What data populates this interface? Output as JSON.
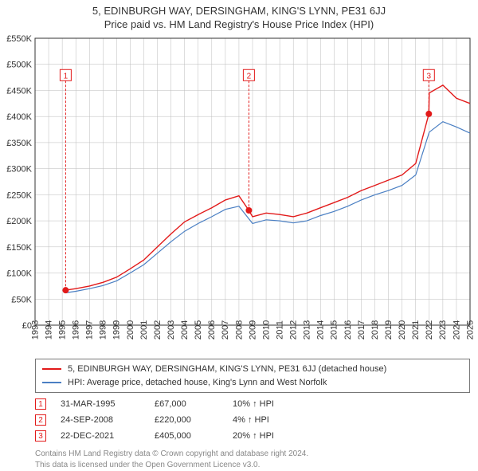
{
  "title_line1": "5, EDINBURGH WAY, DERSINGHAM, KING'S LYNN, PE31 6JJ",
  "title_line2": "Price paid vs. HM Land Registry's House Price Index (HPI)",
  "chart": {
    "type": "line",
    "background_color": "#ffffff",
    "plot_border_color": "#333333",
    "grid_color": "#bbbbbb",
    "ylabel_prefix": "£",
    "ylabel_suffix": "K",
    "ylim": [
      0,
      550
    ],
    "ytick_step": 50,
    "yticks": [
      0,
      50,
      100,
      150,
      200,
      250,
      300,
      350,
      400,
      450,
      500,
      550
    ],
    "xlim": [
      1993,
      2025
    ],
    "xticks": [
      1993,
      1994,
      1995,
      1996,
      1997,
      1998,
      1999,
      2000,
      2001,
      2002,
      2003,
      2004,
      2005,
      2006,
      2007,
      2008,
      2009,
      2010,
      2011,
      2012,
      2013,
      2014,
      2015,
      2016,
      2017,
      2018,
      2019,
      2020,
      2021,
      2022,
      2023,
      2024,
      2025
    ],
    "xtick_rotation": -90,
    "series": [
      {
        "name": "price_paid",
        "legend": "5, EDINBURGH WAY, DERSINGHAM, KING'S LYNN, PE31 6JJ (detached house)",
        "color": "#e21a1a",
        "line_width": 1.4,
        "x": [
          1995.25,
          1996,
          1997,
          1998,
          1999,
          2000,
          2001,
          2002,
          2003,
          2004,
          2005,
          2006,
          2007,
          2008,
          2008.73,
          2009,
          2010,
          2011,
          2012,
          2013,
          2014,
          2015,
          2016,
          2017,
          2018,
          2019,
          2020,
          2021,
          2021.97,
          2022,
          2023,
          2024,
          2025
        ],
        "y": [
          67,
          70,
          75,
          82,
          92,
          108,
          125,
          150,
          175,
          198,
          212,
          225,
          240,
          248,
          220,
          208,
          215,
          212,
          208,
          215,
          225,
          235,
          245,
          258,
          268,
          278,
          288,
          310,
          405,
          445,
          460,
          435,
          425
        ]
      },
      {
        "name": "hpi",
        "legend": "HPI: Average price, detached house, King's Lynn and West Norfolk",
        "color": "#4a7fc3",
        "line_width": 1.2,
        "x": [
          1995.25,
          1996,
          1997,
          1998,
          1999,
          2000,
          2001,
          2002,
          2003,
          2004,
          2005,
          2006,
          2007,
          2008,
          2009,
          2010,
          2011,
          2012,
          2013,
          2014,
          2015,
          2016,
          2017,
          2018,
          2019,
          2020,
          2021,
          2022,
          2023,
          2024,
          2025
        ],
        "y": [
          62,
          65,
          70,
          76,
          85,
          100,
          116,
          138,
          160,
          180,
          195,
          208,
          222,
          228,
          195,
          202,
          200,
          196,
          200,
          210,
          218,
          228,
          240,
          250,
          258,
          268,
          288,
          370,
          390,
          380,
          368
        ]
      }
    ],
    "markers": [
      {
        "n": "1",
        "x": 1995.25,
        "y": 67,
        "box_y": 490,
        "color": "#e21a1a"
      },
      {
        "n": "2",
        "x": 2008.73,
        "y": 220,
        "box_y": 490,
        "color": "#e21a1a"
      },
      {
        "n": "3",
        "x": 2021.97,
        "y": 405,
        "box_y": 490,
        "color": "#e21a1a"
      }
    ],
    "marker_dot_radius": 4,
    "label_fontsize": 11
  },
  "legend": {
    "border_color": "#777777",
    "items": [
      {
        "color": "#e21a1a",
        "text": "5, EDINBURGH WAY, DERSINGHAM, KING'S LYNN, PE31 6JJ (detached house)"
      },
      {
        "color": "#4a7fc3",
        "text": "HPI: Average price, detached house, King's Lynn and West Norfolk"
      }
    ]
  },
  "transactions": [
    {
      "n": "1",
      "color": "#e21a1a",
      "date": "31-MAR-1995",
      "price": "£67,000",
      "pct": "10% ↑ HPI"
    },
    {
      "n": "2",
      "color": "#e21a1a",
      "date": "24-SEP-2008",
      "price": "£220,000",
      "pct": "4% ↑ HPI"
    },
    {
      "n": "3",
      "color": "#e21a1a",
      "date": "22-DEC-2021",
      "price": "£405,000",
      "pct": "20% ↑ HPI"
    }
  ],
  "footer": {
    "line1": "Contains HM Land Registry data © Crown copyright and database right 2024.",
    "line2": "This data is licensed under the Open Government Licence v3.0."
  }
}
